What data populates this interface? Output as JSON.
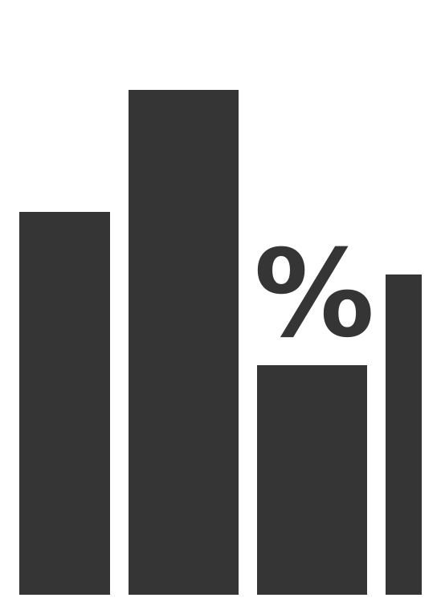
{
  "icon": {
    "name": "percentage-bar-chart-icon",
    "symbol": "%",
    "color": "#353535",
    "background": "#ffffff",
    "bars": [
      {
        "name": "bar-1",
        "level": 0.76
      },
      {
        "name": "bar-2",
        "level": 1.0
      },
      {
        "name": "bar-3",
        "level": 0.45
      },
      {
        "name": "bar-4",
        "level": 0.63
      }
    ]
  }
}
